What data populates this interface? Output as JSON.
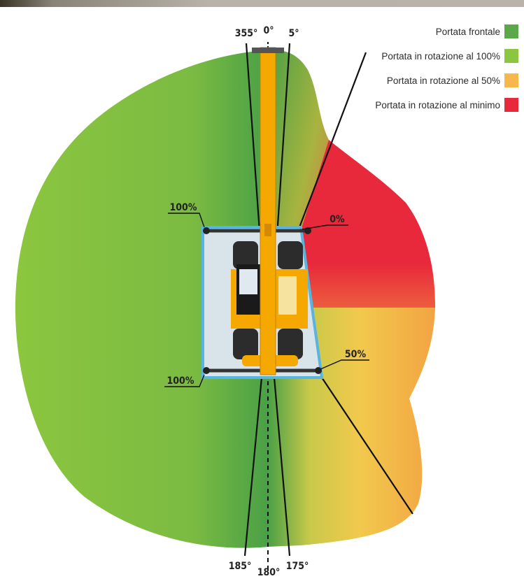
{
  "legend": [
    {
      "label": "Portata frontale",
      "color": "#5aa849"
    },
    {
      "label": "Portata in rotazione al 100%",
      "color": "#8cc63f"
    },
    {
      "label": "Portata in rotazione al 50%",
      "color": "#f7b84b"
    },
    {
      "label": "Portata in rotazione al minimo",
      "color": "#e8283b"
    }
  ],
  "angles": {
    "top_left": "355°",
    "top_center": "0°",
    "top_right": "5°",
    "bottom_left": "185°",
    "bottom_center": "180°",
    "bottom_right": "175°"
  },
  "capacity_labels": {
    "front_left_top": "100%",
    "front_left_bottom": "100%",
    "right_top": "0%",
    "right_bottom": "50%"
  },
  "colors": {
    "green_dark": "#4aa046",
    "green_light": "#8cc63f",
    "yellow": "#f2c94c",
    "orange": "#f2a443",
    "red": "#e8283b",
    "machine_yellow": "#f5a800",
    "frame_blue": "#5ab4e0"
  }
}
